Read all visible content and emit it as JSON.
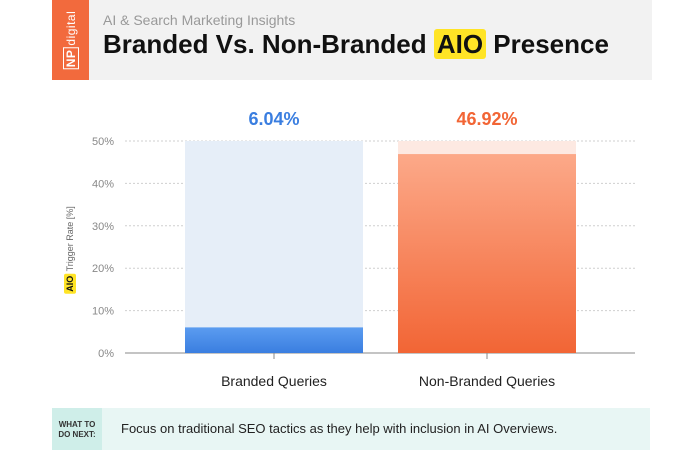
{
  "header": {
    "logo_np": "NP",
    "logo_text": "digital",
    "subtitle": "AI & Search Marketing Insights",
    "title_pre": "Branded Vs. Non-Branded ",
    "title_hl": "AIO",
    "title_post": " Presence"
  },
  "chart_data": {
    "type": "bar",
    "categories": [
      "Branded Queries",
      "Non-Branded Queries"
    ],
    "values": [
      6.04,
      46.92
    ],
    "value_labels": [
      "6.04%",
      "46.92%"
    ],
    "ylabel_hl": "AIO",
    "ylabel": "Trigger Rate [%]",
    "ylim": [
      0,
      50
    ],
    "yticks": [
      "0%",
      "10%",
      "20%",
      "30%",
      "40%",
      "50%"
    ],
    "colors": {
      "branded": "#3a7ee0",
      "branded_bg": "#e6eef8",
      "nonbranded": "#f26535",
      "nonbranded_bg": "#fde9e2"
    }
  },
  "footer": {
    "label": "WHAT TO DO NEXT:",
    "text": "Focus on traditional SEO tactics as they help with inclusion in AI Overviews."
  }
}
